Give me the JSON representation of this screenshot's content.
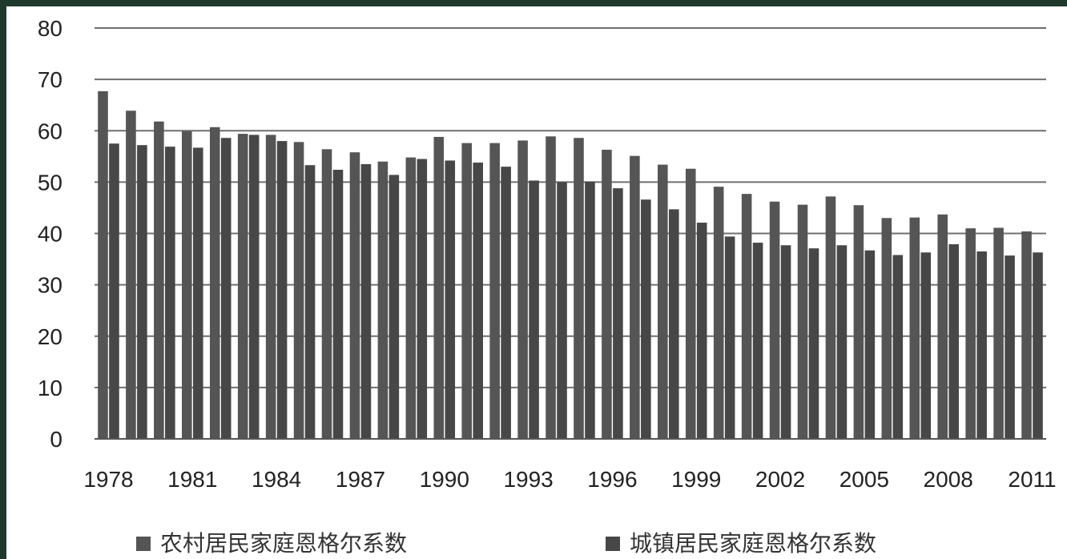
{
  "chart_data": {
    "type": "bar",
    "title": "",
    "xlabel": "",
    "ylabel": "",
    "ylim": [
      0,
      80
    ],
    "yticks": [
      0,
      10,
      20,
      30,
      40,
      50,
      60,
      70,
      80
    ],
    "grid": true,
    "legend_position": "bottom",
    "x": [
      1978,
      1979,
      1980,
      1981,
      1982,
      1983,
      1984,
      1985,
      1986,
      1987,
      1988,
      1989,
      1990,
      1991,
      1992,
      1993,
      1994,
      1995,
      1996,
      1997,
      1998,
      1999,
      2000,
      2001,
      2002,
      2003,
      2004,
      2005,
      2006,
      2007,
      2008,
      2009,
      2010,
      2011
    ],
    "x_tick_labels": [
      "1978",
      "1981",
      "1984",
      "1987",
      "1990",
      "1993",
      "1996",
      "1999",
      "2002",
      "2005",
      "2008",
      "2011"
    ],
    "series": [
      {
        "name": "农村居民家庭恩格尔系数",
        "color": "#555555",
        "values": [
          67.7,
          63.9,
          61.8,
          59.9,
          60.7,
          59.4,
          59.2,
          57.8,
          56.4,
          55.8,
          54.0,
          54.8,
          58.8,
          57.6,
          57.6,
          58.1,
          58.9,
          58.6,
          56.3,
          55.1,
          53.4,
          52.6,
          49.1,
          47.7,
          46.2,
          45.6,
          47.2,
          45.5,
          43.0,
          43.1,
          43.7,
          41.0,
          41.1,
          40.4
        ]
      },
      {
        "name": "城镇居民家庭恩格尔系数",
        "color": "#474747",
        "values": [
          57.5,
          57.2,
          56.9,
          56.7,
          58.6,
          59.2,
          58.0,
          53.3,
          52.4,
          53.5,
          51.4,
          54.5,
          54.2,
          53.8,
          53.0,
          50.3,
          50.0,
          50.1,
          48.8,
          46.6,
          44.7,
          42.1,
          39.4,
          38.2,
          37.7,
          37.1,
          37.7,
          36.7,
          35.8,
          36.3,
          37.9,
          36.5,
          35.7,
          36.3
        ]
      }
    ]
  }
}
